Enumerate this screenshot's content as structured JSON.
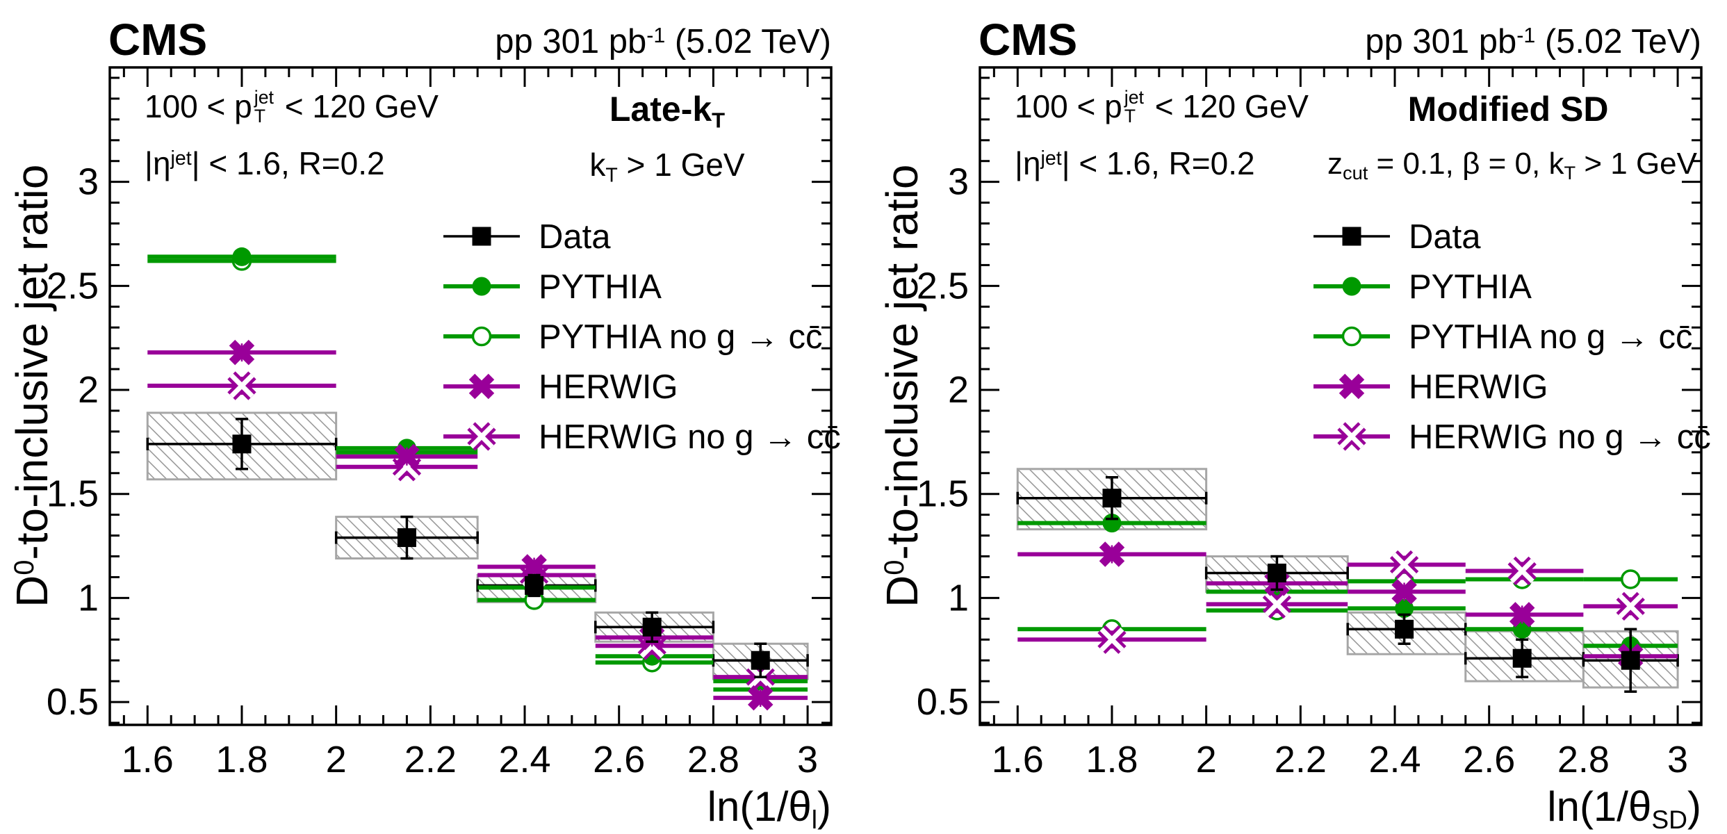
{
  "header": {
    "experiment": "CMS",
    "lumi": {
      "pre": "pp 301 pb",
      "sup": "-1",
      "post": " (5.02 TeV)"
    }
  },
  "selection": {
    "pt": {
      "pre": "100 < p",
      "sup": "jet",
      "sub": "T",
      "post": " < 120 GeV"
    },
    "eta": {
      "pre": "|η",
      "sup": "jet",
      "post": "| < 1.6, R=0.2"
    }
  },
  "ylabel": {
    "pre": "D",
    "sup": "0",
    "post": "-to-inclusive jet ratio"
  },
  "panels": [
    {
      "id": "late-kt",
      "title": {
        "pre": "Late-k",
        "sub": "T"
      },
      "cut": {
        "s1": "k",
        "sub1": "T",
        "s2": " > 1 GeV"
      },
      "xlabel": {
        "pre": "ln(1/θ",
        "sub": "l",
        "post": ")"
      }
    },
    {
      "id": "modified-sd",
      "title": {
        "pre": "Modified SD",
        "sub": ""
      },
      "cut": {
        "s1": "z",
        "sub1": "cut",
        "s2": " = 0.1, β = 0, k",
        "sub2": "T",
        "s3": " > 1 GeV"
      },
      "xlabel": {
        "pre": "ln(1/θ",
        "sub": "SD",
        "post": ")"
      }
    }
  ],
  "colors": {
    "data": "#000000",
    "pythia": "#009900",
    "herwig": "#990099",
    "box_border": "#a6a6a6",
    "hatch": "#8c8c8c"
  },
  "legend": [
    {
      "label": "Data",
      "color": "#000000",
      "marker": "square"
    },
    {
      "label": "PYTHIA",
      "color": "#009900",
      "marker": "circle"
    },
    {
      "label": "PYTHIA no g → cc̄",
      "color": "#009900",
      "marker": "circle-open"
    },
    {
      "label": "HERWIG",
      "color": "#990099",
      "marker": "xcross"
    },
    {
      "label": "HERWIG no g → cc̄",
      "color": "#990099",
      "marker": "xcross-open"
    }
  ],
  "chart_data": [
    {
      "type": "errorbar",
      "title": "Late-kT",
      "subtitle": "kT > 1 GeV",
      "xlabel": "ln(1/θ_l)",
      "ylabel": "D0-to-inclusive jet ratio",
      "xlim": [
        1.52,
        3.05
      ],
      "ylim": [
        0.39,
        3.55
      ],
      "xticks": [
        1.6,
        1.8,
        2,
        2.2,
        2.4,
        2.6,
        2.8,
        3
      ],
      "yticks": [
        0.5,
        1,
        1.5,
        2,
        2.5,
        3
      ],
      "x_minor_step": 0.05,
      "y_minor_step": 0.1,
      "bins": [
        {
          "lo": 1.6,
          "hi": 2.0,
          "center": 1.8
        },
        {
          "lo": 2.0,
          "hi": 2.3,
          "center": 2.15
        },
        {
          "lo": 2.3,
          "hi": 2.55,
          "center": 2.42
        },
        {
          "lo": 2.55,
          "hi": 2.8,
          "center": 2.67
        },
        {
          "lo": 2.8,
          "hi": 3.0,
          "center": 2.9
        }
      ],
      "series": [
        {
          "name": "Data",
          "type": "data",
          "color": "#000000",
          "marker": "square",
          "y": [
            1.74,
            1.29,
            1.06,
            0.86,
            0.7
          ],
          "stat": [
            0.12,
            0.1,
            0.05,
            0.07,
            0.08
          ],
          "syst_lo": [
            1.57,
            1.19,
            0.98,
            0.79,
            0.61
          ],
          "syst_hi": [
            1.89,
            1.39,
            1.11,
            0.93,
            0.78
          ]
        },
        {
          "name": "PYTHIA no g → cc̄",
          "color": "#009900",
          "marker": "circle-open",
          "y": [
            2.62,
            1.7,
            0.99,
            0.69,
            0.56
          ]
        },
        {
          "name": "PYTHIA",
          "color": "#009900",
          "marker": "circle",
          "y": [
            2.64,
            1.72,
            1.05,
            0.72,
            0.6
          ]
        },
        {
          "name": "HERWIG no g → cc̄",
          "color": "#990099",
          "marker": "xcross-open",
          "y": [
            2.02,
            1.63,
            1.11,
            0.77,
            0.62
          ]
        },
        {
          "name": "HERWIG",
          "color": "#990099",
          "marker": "xcross",
          "y": [
            2.18,
            1.68,
            1.15,
            0.81,
            0.52
          ]
        }
      ]
    },
    {
      "type": "errorbar",
      "title": "Modified SD",
      "subtitle": "zcut = 0.1, beta = 0, kT > 1 GeV",
      "xlabel": "ln(1/θ_SD)",
      "ylabel": "D0-to-inclusive jet ratio",
      "xlim": [
        1.52,
        3.05
      ],
      "ylim": [
        0.39,
        3.55
      ],
      "xticks": [
        1.6,
        1.8,
        2,
        2.2,
        2.4,
        2.6,
        2.8,
        3
      ],
      "yticks": [
        0.5,
        1,
        1.5,
        2,
        2.5,
        3
      ],
      "x_minor_step": 0.05,
      "y_minor_step": 0.1,
      "bins": [
        {
          "lo": 1.6,
          "hi": 2.0,
          "center": 1.8
        },
        {
          "lo": 2.0,
          "hi": 2.3,
          "center": 2.15
        },
        {
          "lo": 2.3,
          "hi": 2.55,
          "center": 2.42
        },
        {
          "lo": 2.55,
          "hi": 2.8,
          "center": 2.67
        },
        {
          "lo": 2.8,
          "hi": 3.0,
          "center": 2.9
        }
      ],
      "series": [
        {
          "name": "Data",
          "type": "data",
          "color": "#000000",
          "marker": "square",
          "y": [
            1.48,
            1.12,
            0.85,
            0.71,
            0.7
          ],
          "stat": [
            0.1,
            0.08,
            0.07,
            0.09,
            0.15
          ],
          "syst_lo": [
            1.33,
            1.03,
            0.73,
            0.6,
            0.57
          ],
          "syst_hi": [
            1.62,
            1.2,
            0.93,
            0.84,
            0.84
          ]
        },
        {
          "name": "PYTHIA no g → cc̄",
          "color": "#009900",
          "marker": "circle-open",
          "y": [
            0.85,
            0.94,
            1.08,
            1.09,
            1.09
          ]
        },
        {
          "name": "PYTHIA",
          "color": "#009900",
          "marker": "circle",
          "y": [
            1.36,
            1.03,
            0.95,
            0.85,
            0.77
          ]
        },
        {
          "name": "HERWIG no g → cc̄",
          "color": "#990099",
          "marker": "xcross-open",
          "y": [
            0.8,
            0.97,
            1.16,
            1.13,
            0.96
          ]
        },
        {
          "name": "HERWIG",
          "color": "#990099",
          "marker": "xcross",
          "y": [
            1.21,
            1.07,
            1.03,
            0.92,
            0.72
          ]
        }
      ]
    }
  ]
}
